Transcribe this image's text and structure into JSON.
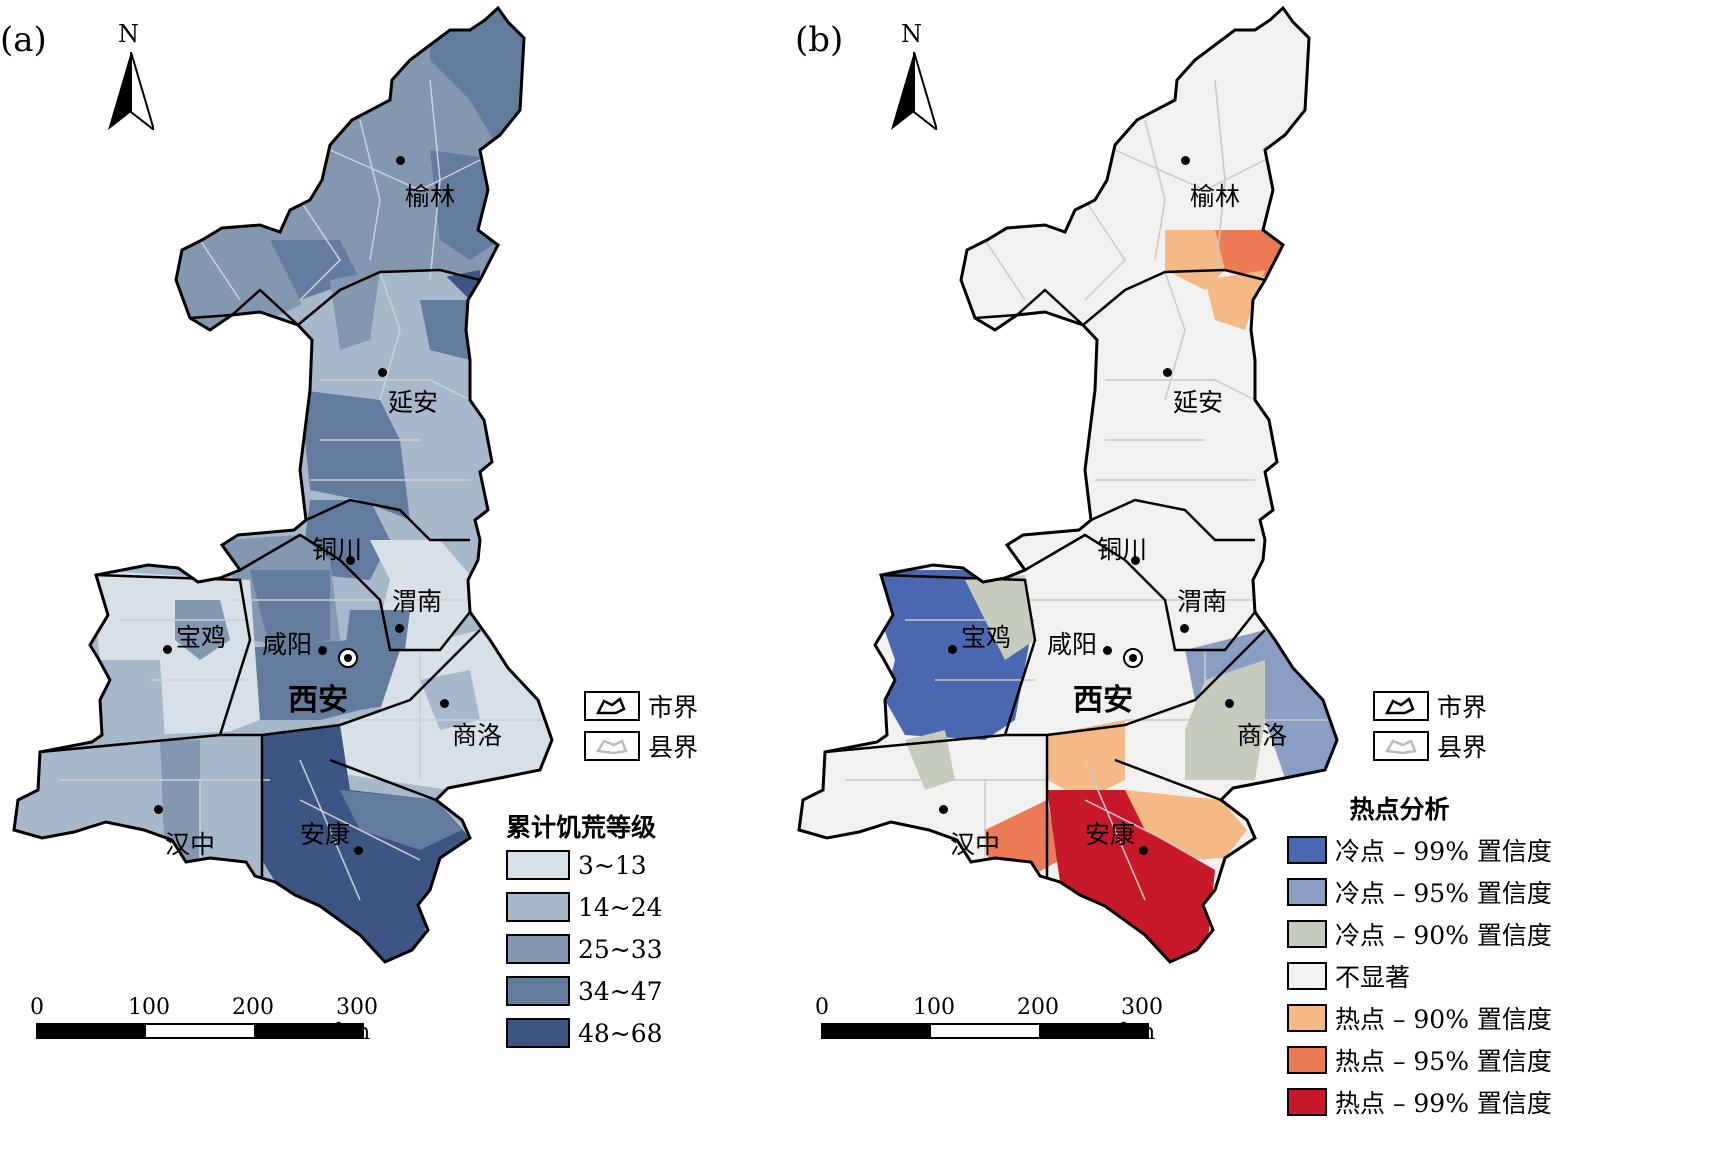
{
  "panel_a": {
    "label": "(a)",
    "north": "N",
    "cities": [
      {
        "name": "榆林"
      },
      {
        "name": "延安"
      },
      {
        "name": "铜川"
      },
      {
        "name": "渭南"
      },
      {
        "name": "宝鸡"
      },
      {
        "name": "咸阳"
      },
      {
        "name": "西安"
      },
      {
        "name": "商洛"
      },
      {
        "name": "汉中"
      },
      {
        "name": "安康"
      }
    ],
    "boundary_legend": {
      "city": "市界",
      "county": "县界"
    },
    "legend_title": "累计饥荒等级",
    "classes": [
      {
        "label": "3~13",
        "color": "#d7e0e6"
      },
      {
        "label": "14~24",
        "color": "#a7b8ca"
      },
      {
        "label": "25~33",
        "color": "#8398b0"
      },
      {
        "label": "34~47",
        "color": "#637c9e"
      },
      {
        "label": "48~68",
        "color": "#3d5582"
      }
    ],
    "scale": {
      "ticks": [
        "0",
        "100",
        "200",
        "300 km"
      ]
    }
  },
  "panel_b": {
    "label": "(b)",
    "north": "N",
    "cities": [
      {
        "name": "榆林"
      },
      {
        "name": "延安"
      },
      {
        "name": "铜川"
      },
      {
        "name": "渭南"
      },
      {
        "name": "宝鸡"
      },
      {
        "name": "咸阳"
      },
      {
        "name": "西安"
      },
      {
        "name": "商洛"
      },
      {
        "name": "汉中"
      },
      {
        "name": "安康"
      }
    ],
    "boundary_legend": {
      "city": "市界",
      "county": "县界"
    },
    "legend_title": "热点分析",
    "classes": [
      {
        "label": "冷点 – 99% 置信度",
        "color": "#4a68b0"
      },
      {
        "label": "冷点 – 95% 置信度",
        "color": "#8a9dc3"
      },
      {
        "label": "冷点 – 90% 置信度",
        "color": "#c5cbbd"
      },
      {
        "label": "不显著",
        "color": "#f1f1ef"
      },
      {
        "label": "热点 – 90% 置信度",
        "color": "#f4b984"
      },
      {
        "label": "热点 – 95% 置信度",
        "color": "#ec7a55"
      },
      {
        "label": "热点 – 99% 置信度",
        "color": "#c8192b"
      }
    ],
    "scale": {
      "ticks": [
        "0",
        "100",
        "200",
        "300 km"
      ]
    }
  }
}
